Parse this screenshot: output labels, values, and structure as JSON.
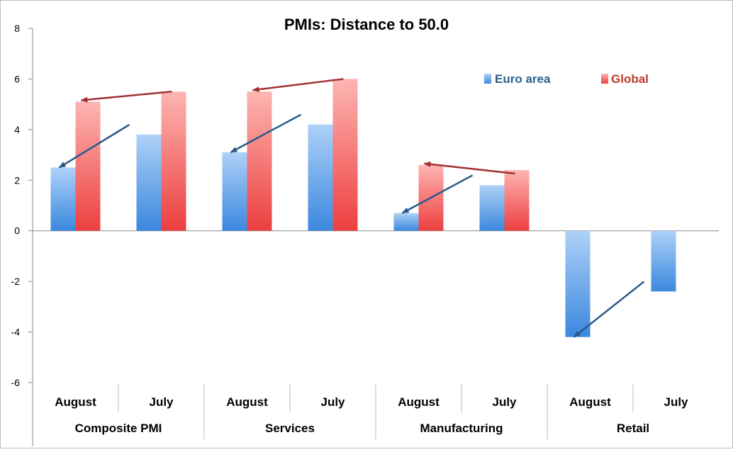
{
  "colors": {
    "euro": "#4a90e2",
    "euro_light": "#a9cdf7",
    "global": "#ee4444",
    "global_light": "#fbb0ae",
    "euro_arrow": "#2a5a8a",
    "global_arrow": "#a03030",
    "axis": "#888888",
    "euro_legend_text": "#2a5d8f",
    "global_legend_text": "#c0392b"
  },
  "chart_data": {
    "type": "bar",
    "title": "PMIs: Distance to 50.0",
    "ylim": [
      -6,
      8
    ],
    "yticks": [
      8,
      6,
      4,
      2,
      0,
      -2,
      -4,
      -6
    ],
    "groups": [
      {
        "label": "Composite PMI",
        "categories": [
          "August",
          "July"
        ]
      },
      {
        "label": "Services",
        "categories": [
          "August",
          "July"
        ]
      },
      {
        "label": "Manufacturing",
        "categories": [
          "August",
          "July"
        ]
      },
      {
        "label": "Retail",
        "categories": [
          "August",
          "July"
        ]
      }
    ],
    "series": [
      {
        "name": "Euro area",
        "key": "euro",
        "values": [
          2.5,
          3.8,
          3.1,
          4.2,
          0.7,
          1.8,
          -4.2,
          -2.4
        ]
      },
      {
        "name": "Global",
        "key": "global",
        "values": [
          5.1,
          5.5,
          5.5,
          6.0,
          2.6,
          2.4,
          null,
          null
        ]
      }
    ],
    "legend_position": "top-right",
    "annotations": "arrows from July to August value for each series"
  }
}
